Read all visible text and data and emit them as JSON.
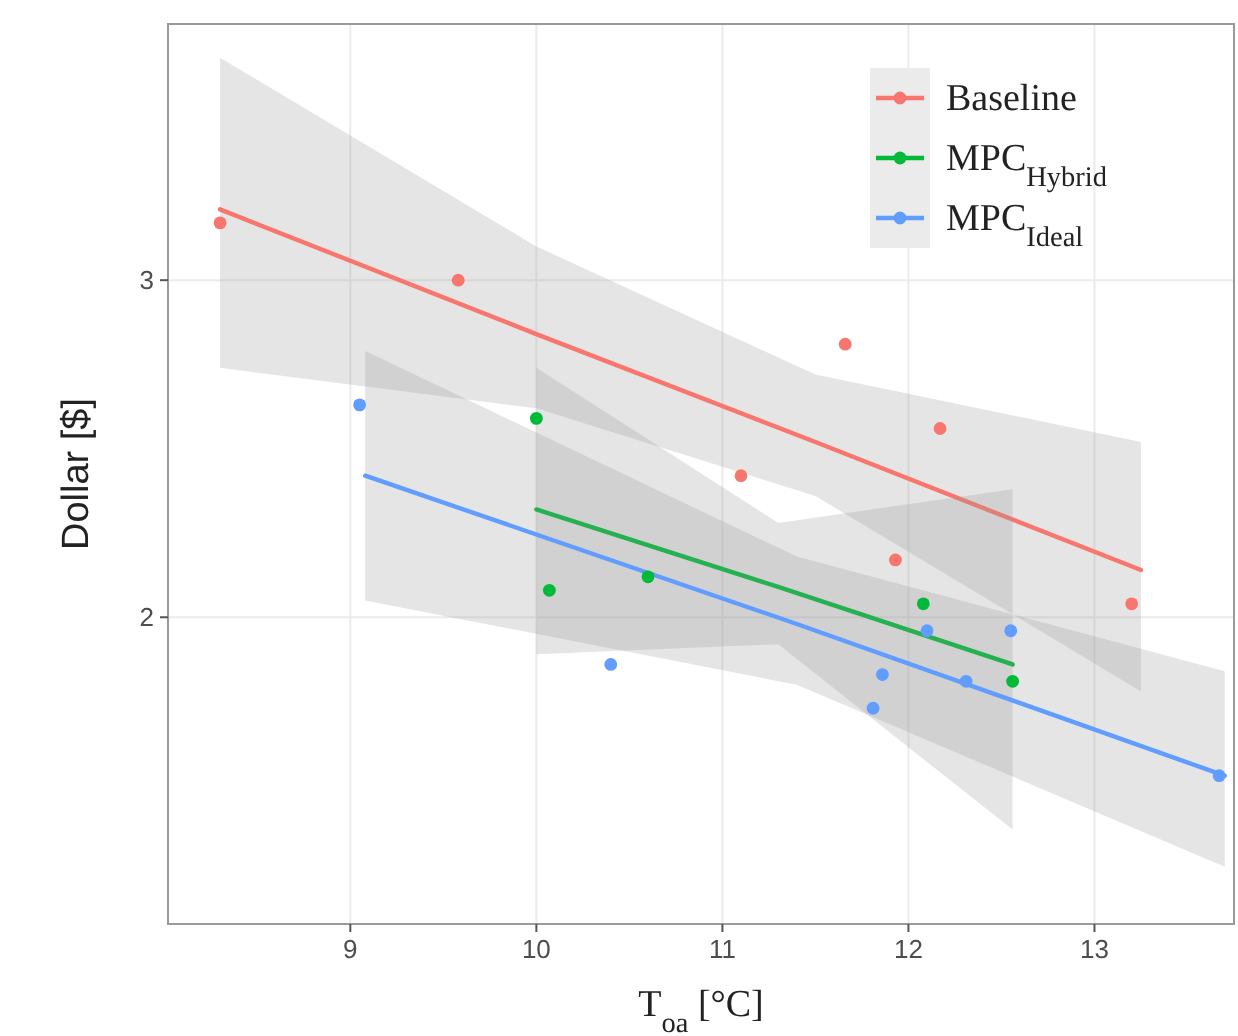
{
  "chart_data": {
    "type": "scatter",
    "xlabel": "T$_{oa}$ [°C]",
    "ylabel": "Dollar [$]",
    "xlim": [
      8.02,
      13.75
    ],
    "ylim": [
      1.09,
      3.76
    ],
    "xticks": [
      9,
      10,
      11,
      12,
      13
    ],
    "yticks": [
      2,
      3
    ],
    "grid": true,
    "legend": "top right",
    "marker": "circle",
    "series": [
      {
        "name": "Baseline",
        "color": "#f8766d",
        "x": [
          8.3,
          9.58,
          11.66,
          12.17,
          11.1,
          11.93,
          13.2
        ],
        "values": [
          3.17,
          3.0,
          2.81,
          2.56,
          2.42,
          2.17,
          2.04
        ]
      },
      {
        "name": "MPC$_{Hybrid}$",
        "color": "#00ba38",
        "x": [
          10.0,
          10.07,
          10.6,
          12.08,
          12.56
        ],
        "values": [
          2.59,
          2.08,
          2.12,
          2.04,
          1.81
        ]
      },
      {
        "name": "MPC$_{Ideal}$",
        "color": "#619cff",
        "x": [
          9.05,
          10.4,
          11.86,
          11.81,
          12.1,
          12.55,
          12.31,
          13.67
        ],
        "values": [
          2.63,
          1.86,
          1.83,
          1.73,
          1.96,
          1.96,
          1.81,
          1.53
        ]
      },
      {
        "type": "line",
        "marker": "none",
        "color": "#f8766d",
        "x": [
          8.3,
          10.0,
          11.5,
          13.25
        ],
        "values": [
          3.21,
          2.84,
          2.52,
          2.14
        ],
        "lower": [
          2.74,
          2.62,
          2.36,
          1.78
        ],
        "upper": [
          3.66,
          3.1,
          2.72,
          2.52
        ]
      },
      {
        "type": "line",
        "marker": "none",
        "color": "#00ba38",
        "x": [
          10.0,
          11.3,
          12.56
        ],
        "values": [
          2.32,
          2.09,
          1.86
        ],
        "lower": [
          1.89,
          1.92,
          1.37
        ],
        "upper": [
          2.74,
          2.28,
          2.38
        ]
      },
      {
        "type": "line",
        "marker": "none",
        "color": "#619cff",
        "x": [
          9.08,
          11.4,
          13.7
        ],
        "values": [
          2.42,
          1.98,
          1.53
        ],
        "lower": [
          2.05,
          1.8,
          1.26
        ],
        "upper": [
          2.79,
          2.18,
          1.84
        ]
      }
    ]
  }
}
